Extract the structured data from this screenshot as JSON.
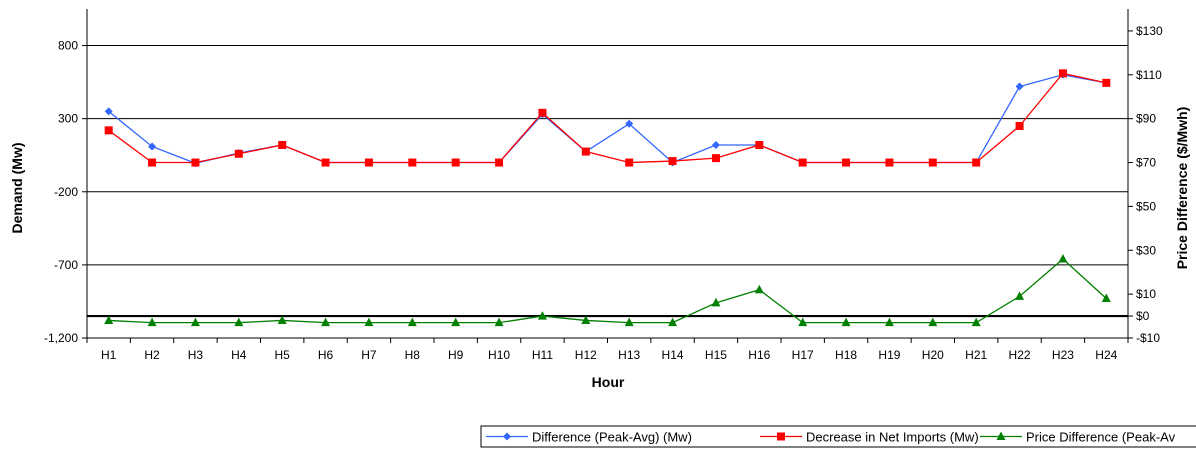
{
  "chart_data": {
    "type": "line",
    "xlabel": "Hour",
    "ylabel": "Demand (Mw)",
    "y2label": "Price Difference ($/Mwh)",
    "categories": [
      "H1",
      "H2",
      "H3",
      "H4",
      "H5",
      "H6",
      "H7",
      "H8",
      "H9",
      "H10",
      "H11",
      "H12",
      "H13",
      "H14",
      "H15",
      "H16",
      "H17",
      "H18",
      "H19",
      "H20",
      "H21",
      "H22",
      "H23",
      "H24"
    ],
    "ylim": [
      -1200,
      1050
    ],
    "yticks": [
      800,
      300,
      -200,
      -700,
      -1200
    ],
    "ytick_labels": [
      "800",
      "300",
      "-200",
      "-700",
      "-1,200"
    ],
    "y2lim": [
      -10,
      140
    ],
    "y2ticks": [
      130,
      110,
      90,
      70,
      50,
      30,
      10,
      0,
      -10
    ],
    "y2tick_labels": [
      "$130",
      "$110",
      "$90",
      "$70",
      "$50",
      "$30",
      "$10",
      "$0",
      "-$10"
    ],
    "gridlines_at": [
      800,
      300,
      -200,
      -700
    ],
    "zero_line_y2": 0,
    "legend_position": "bottom-right",
    "series": [
      {
        "name": "Difference (Peak-Avg) (Mw)",
        "axis": "left",
        "color": "#3366ff",
        "marker": "diamond",
        "values": [
          350,
          110,
          -5,
          65,
          120,
          0,
          0,
          0,
          0,
          0,
          330,
          75,
          265,
          0,
          120,
          120,
          0,
          0,
          0,
          0,
          0,
          520,
          600,
          545
        ]
      },
      {
        "name": "Decrease in Net Imports (Mw)",
        "axis": "left",
        "color": "#ff0000",
        "marker": "square",
        "values": [
          220,
          0,
          0,
          60,
          120,
          0,
          0,
          0,
          0,
          0,
          340,
          75,
          0,
          10,
          30,
          120,
          0,
          0,
          0,
          0,
          0,
          250,
          610,
          545
        ]
      },
      {
        "name": "Price Difference (Peak-Avg) ($/Mwh)",
        "axis": "right",
        "color": "#008000",
        "marker": "triangle",
        "values": [
          -2,
          -3,
          -3,
          -3,
          -2,
          -3,
          -3,
          -3,
          -3,
          -3,
          0,
          -2,
          -3,
          -3,
          6,
          12,
          -3,
          -3,
          -3,
          -3,
          -3,
          9,
          26,
          8
        ]
      }
    ],
    "legend_visible_text": [
      "Difference (Peak-Avg) (Mw)",
      "Decrease in Net Imports (Mw)",
      "Price Difference (Peak-Av"
    ]
  }
}
